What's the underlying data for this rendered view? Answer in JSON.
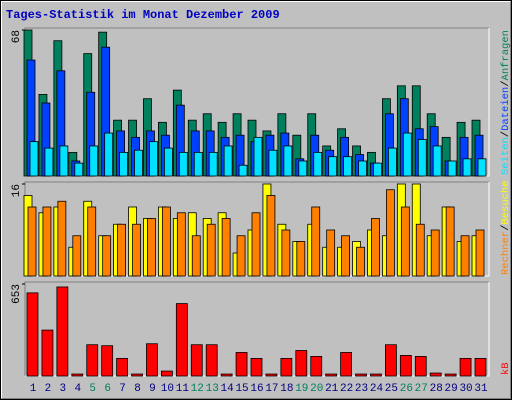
{
  "chart_data": [
    {
      "type": "bar",
      "title": "Tages-Statistik im Monat Dezember 2009",
      "ylim": [
        0,
        68
      ],
      "yticks": [
        68
      ],
      "legend_separator": "/",
      "series": [
        {
          "name": "Anfragen",
          "color": "#00805c",
          "values": [
            68,
            38,
            63,
            11,
            57,
            67,
            26,
            26,
            36,
            25,
            40,
            26,
            29,
            25,
            29,
            26,
            21,
            29,
            19,
            29,
            14,
            22,
            14,
            11,
            36,
            42,
            42,
            29,
            18,
            25,
            26
          ]
        },
        {
          "name": "Dateien",
          "color": "#0040ff",
          "values": [
            54,
            34,
            49,
            7,
            39,
            60,
            21,
            18,
            21,
            19,
            33,
            21,
            21,
            18,
            19,
            16,
            19,
            20,
            8,
            19,
            12,
            18,
            10,
            6,
            29,
            36,
            22,
            23,
            7,
            18,
            19
          ]
        },
        {
          "name": "Seiten",
          "color": "#00e0ff",
          "values": [
            16,
            13,
            14,
            6,
            14,
            20,
            11,
            12,
            16,
            13,
            11,
            11,
            11,
            14,
            5,
            18,
            12,
            14,
            7,
            11,
            9,
            9,
            7,
            6,
            13,
            20,
            17,
            14,
            7,
            8,
            8
          ]
        }
      ]
    },
    {
      "type": "bar",
      "ylim": [
        0,
        16
      ],
      "yticks": [
        16
      ],
      "legend_separator": "/",
      "series": [
        {
          "name": "Besuche",
          "color": "#ffff00",
          "values": [
            14,
            11,
            12,
            5,
            13,
            7,
            9,
            12,
            10,
            12,
            10,
            11,
            10,
            11,
            4,
            8,
            16,
            9,
            6,
            9,
            5,
            5,
            6,
            8,
            7,
            16,
            16,
            7,
            12,
            6,
            7
          ]
        },
        {
          "name": "Rechner",
          "color": "#ff8000",
          "values": [
            12,
            12,
            13,
            7,
            12,
            7,
            9,
            9,
            10,
            12,
            11,
            7,
            9,
            10,
            7,
            11,
            14,
            8,
            6,
            12,
            8,
            7,
            5,
            10,
            15,
            12,
            9,
            8,
            12,
            7,
            8
          ]
        }
      ]
    },
    {
      "type": "bar",
      "ylim": [
        0,
        653
      ],
      "yticks": [
        653
      ],
      "categories": [
        "1",
        "2",
        "3",
        "4",
        "5",
        "6",
        "7",
        "8",
        "9",
        "10",
        "11",
        "12",
        "13",
        "14",
        "15",
        "16",
        "17",
        "18",
        "19",
        "20",
        "21",
        "22",
        "23",
        "24",
        "25",
        "26",
        "27",
        "28",
        "29",
        "30",
        "31"
      ],
      "category_colors": [
        "#000080",
        "#000080",
        "#000080",
        "#000080",
        "#00805c",
        "#00805c",
        "#000080",
        "#000080",
        "#000080",
        "#000080",
        "#000080",
        "#00805c",
        "#00805c",
        "#000080",
        "#000080",
        "#000080",
        "#000080",
        "#000080",
        "#00805c",
        "#00805c",
        "#000080",
        "#000080",
        "#000080",
        "#000080",
        "#000080",
        "#00805c",
        "#00805c",
        "#000080",
        "#000080",
        "#000080",
        "#000080"
      ],
      "series": [
        {
          "name": "kB",
          "color": "#ff0000",
          "values": [
            590,
            326,
            632,
            14,
            222,
            215,
            125,
            14,
            229,
            35,
            514,
            222,
            222,
            14,
            167,
            125,
            14,
            125,
            181,
            139,
            14,
            167,
            14,
            14,
            222,
            146,
            139,
            21,
            14,
            125,
            125
          ]
        }
      ]
    }
  ]
}
